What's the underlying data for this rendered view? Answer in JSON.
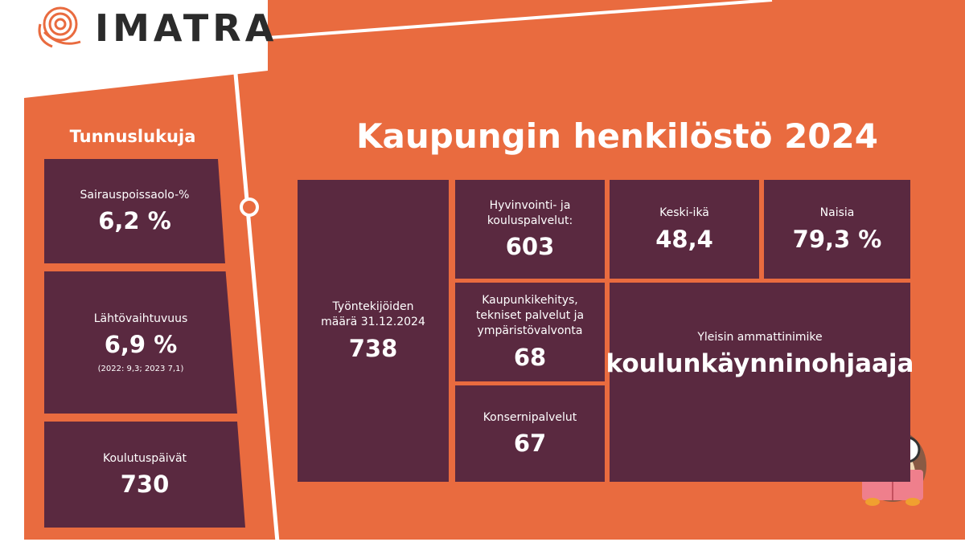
{
  "logo": {
    "text": "IMATRA"
  },
  "sidebar": {
    "title": "Tunnuslukuja",
    "items": [
      {
        "label": "Sairauspoissaolo-%",
        "value": "6,2 %"
      },
      {
        "label": "Lähtövaihtuvuus",
        "value": "6,9 %",
        "note": "(2022: 9,3; 2023 7,1)"
      },
      {
        "label": "Koulutuspäivät",
        "value": "730"
      }
    ]
  },
  "main": {
    "title": "Kaupungin henkilöstö 2024",
    "tiles": [
      {
        "label": "Työntekijöiden määrä 31.12.2024",
        "value": "738"
      },
      {
        "label": "Hyvinvointi- ja kouluspalvelut:",
        "value": "603"
      },
      {
        "label": "Keski-ikä",
        "value": "48,4"
      },
      {
        "label": "Naisia",
        "value": "79,3 %"
      },
      {
        "label": "Kaupunkikehitys, tekniset palvelut ja ympäristövalvonta",
        "value": "68"
      },
      {
        "label": "Konsernipalvelut",
        "value": "67"
      },
      {
        "label": "Yleisin ammattinimike",
        "value": "koulunkäynninohjaaja"
      }
    ]
  }
}
